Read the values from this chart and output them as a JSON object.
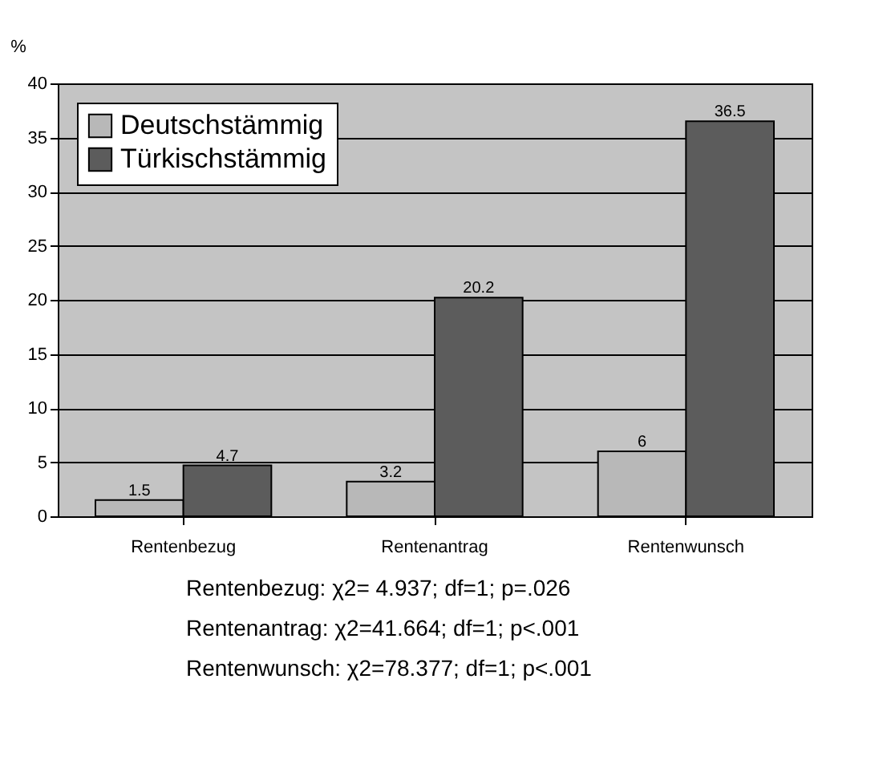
{
  "chart_data": {
    "type": "bar",
    "ylabel": "%",
    "categories": [
      "Rentenbezug",
      "Rentenantrag",
      "Rentenwunsch"
    ],
    "series": [
      {
        "name": "Deutschstämmig",
        "color": "#b8b8b8",
        "values": [
          1.5,
          3.2,
          6
        ]
      },
      {
        "name": "Türkischstämmig",
        "color": "#5c5c5c",
        "values": [
          4.7,
          20.2,
          36.5
        ]
      }
    ],
    "ylim": [
      0,
      40
    ],
    "yticks": [
      0,
      5,
      10,
      15,
      20,
      25,
      30,
      35,
      40
    ],
    "grid": "y",
    "legend": "top left",
    "data_labels": true,
    "annotations": [
      "Rentenbezug:   χ2= 4.937; df=1; p=.026",
      "Rentenantrag:   χ2=41.664; df=1; p<.001",
      "Rentenwunsch: χ2=78.377; df=1; p<.001"
    ]
  }
}
